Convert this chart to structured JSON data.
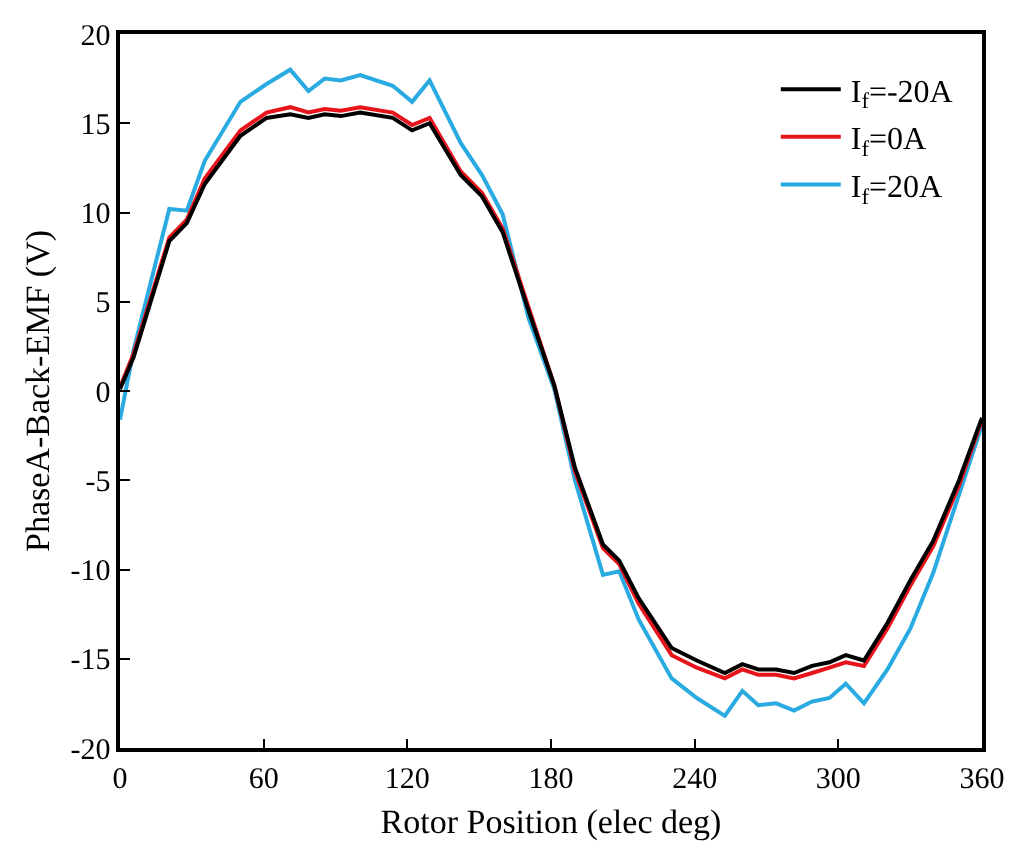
{
  "chart_data": {
    "type": "line",
    "xlabel": "Rotor Position (elec deg)",
    "ylabel": "PhaseA-Back-EMF (V)",
    "x": [
      0,
      5.7,
      20.6,
      27.9,
      35.4,
      50.3,
      61.2,
      71.1,
      78.7,
      85.5,
      92.2,
      100.3,
      113.9,
      122,
      129.3,
      142.3,
      151.2,
      159.8,
      170.6,
      181.4,
      190,
      201.7,
      208.5,
      216.6,
      230.4,
      240.9,
      252.6,
      259.9,
      266.6,
      274,
      281.5,
      289,
      296.3,
      303.1,
      310.7,
      320.5,
      330.1,
      339.6,
      350.4,
      360
    ],
    "series": [
      {
        "name": "I$_{f}$=-20A",
        "color": "#000000",
        "values": [
          0.1,
          1.9,
          8.4,
          9.4,
          11.6,
          14.3,
          15.3,
          15.5,
          15.3,
          15.5,
          15.4,
          15.6,
          15.3,
          14.6,
          15.0,
          12.1,
          10.9,
          8.9,
          4.5,
          0.3,
          -4.3,
          -8.6,
          -9.5,
          -11.6,
          -14.4,
          -15.1,
          -15.8,
          -15.3,
          -15.6,
          -15.6,
          -15.8,
          -15.4,
          -15.2,
          -14.8,
          -15.1,
          -13.0,
          -10.6,
          -8.4,
          -5.0,
          -1.5
        ]
      },
      {
        "name": "I$_{f}$=0A",
        "color": "#e8141b",
        "values": [
          0.2,
          2.1,
          8.6,
          9.6,
          11.9,
          14.6,
          15.6,
          15.9,
          15.6,
          15.8,
          15.7,
          15.9,
          15.6,
          14.9,
          15.3,
          12.3,
          11.1,
          9.1,
          4.7,
          0.3,
          -4.5,
          -8.8,
          -9.7,
          -11.9,
          -14.8,
          -15.5,
          -16.1,
          -15.6,
          -15.9,
          -15.9,
          -16.1,
          -15.8,
          -15.5,
          -15.2,
          -15.4,
          -13.3,
          -10.9,
          -8.7,
          -5.3,
          -1.6
        ]
      },
      {
        "name": "I$_{f}$=20A",
        "color": "#29abe2",
        "values": [
          -1.6,
          2.3,
          10.2,
          10.1,
          12.9,
          16.2,
          17.2,
          18.0,
          16.8,
          17.5,
          17.4,
          17.7,
          17.1,
          16.2,
          17.4,
          13.9,
          12.1,
          9.9,
          4.1,
          0.1,
          -5.0,
          -10.3,
          -10.1,
          -12.8,
          -16.1,
          -17.2,
          -18.2,
          -16.8,
          -17.6,
          -17.5,
          -17.9,
          -17.4,
          -17.2,
          -16.4,
          -17.5,
          -15.6,
          -13.3,
          -10.2,
          -5.8,
          -1.9
        ]
      }
    ],
    "xlim": [
      0,
      360
    ],
    "xticks": [
      0,
      60,
      120,
      180,
      240,
      300,
      360
    ],
    "ylim": [
      -20,
      20
    ],
    "yticks": [
      -20,
      -15,
      -10,
      -5,
      0,
      5,
      10,
      15,
      20
    ],
    "grid": false,
    "legend": "top right",
    "marker": "none",
    "line_style": "solid"
  }
}
